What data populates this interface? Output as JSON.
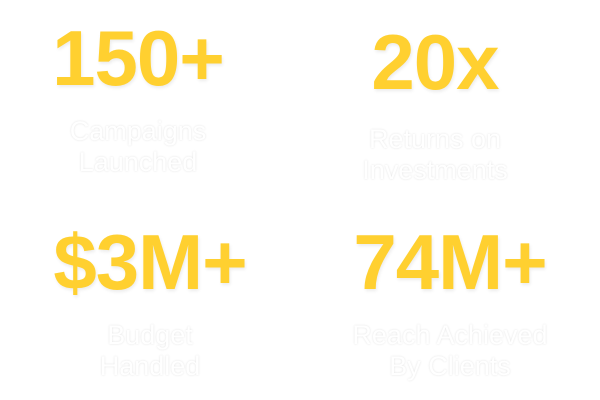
{
  "accent_color": "#FFD030",
  "stats": [
    {
      "value": "150+",
      "label_line1": "Campaigns",
      "label_line2": "Launched"
    },
    {
      "value": "20x",
      "label_line1": "Returns on",
      "label_line2": "Investments"
    },
    {
      "value": "$3M+",
      "label_line1": "Budget",
      "label_line2": "Handled"
    },
    {
      "value": "74M+",
      "label_line1": "Reach Achieved",
      "label_line2": "By Clients"
    }
  ]
}
